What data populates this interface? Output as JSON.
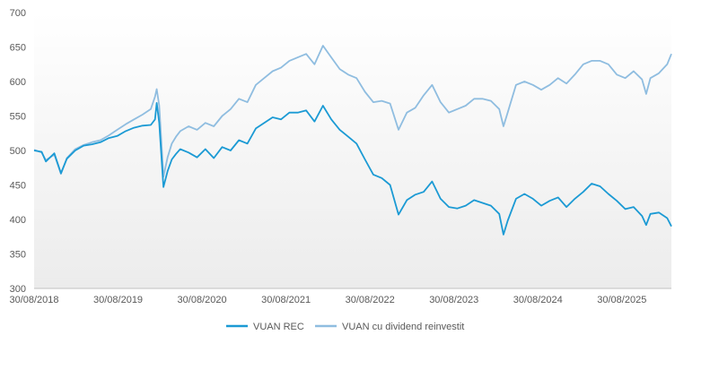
{
  "chart_data": {
    "type": "line",
    "title": "",
    "xlabel": "",
    "ylabel": "",
    "ylim": [
      300,
      700
    ],
    "y_ticks": [
      "700",
      "650",
      "600",
      "550",
      "500",
      "450",
      "400",
      "350",
      "300"
    ],
    "x_tick_labels": [
      "30/08/2018",
      "30/08/2019",
      "30/08/2020",
      "30/08/2021",
      "30/08/2022",
      "30/08/2023",
      "30/08/2024",
      "30/08/2025"
    ],
    "x_tick_years": [
      2018.66,
      2019.66,
      2020.66,
      2021.66,
      2022.66,
      2023.66,
      2024.66,
      2025.66
    ],
    "x_range": [
      2018.66,
      2026.25
    ],
    "grid": false,
    "legend_position": "bottom",
    "colors": {
      "vuan_rec": "#1b9ad4",
      "vuan_reinvest": "#8fbde0",
      "axis": "#bfbfbf",
      "tick_text": "#595959",
      "bg_top": "#ffffff",
      "bg_bottom": "#ececec"
    },
    "series": [
      {
        "key": "vuan_rec",
        "name": "VUAN REC",
        "points": [
          [
            2018.66,
            500
          ],
          [
            2018.75,
            498
          ],
          [
            2018.8,
            484
          ],
          [
            2018.9,
            496
          ],
          [
            2018.98,
            467
          ],
          [
            2019.05,
            488
          ],
          [
            2019.15,
            500
          ],
          [
            2019.25,
            507
          ],
          [
            2019.35,
            509
          ],
          [
            2019.45,
            512
          ],
          [
            2019.55,
            518
          ],
          [
            2019.65,
            521
          ],
          [
            2019.75,
            528
          ],
          [
            2019.85,
            533
          ],
          [
            2019.95,
            536
          ],
          [
            2020.05,
            537
          ],
          [
            2020.1,
            545
          ],
          [
            2020.12,
            569
          ],
          [
            2020.15,
            540
          ],
          [
            2020.2,
            447
          ],
          [
            2020.25,
            470
          ],
          [
            2020.3,
            487
          ],
          [
            2020.35,
            495
          ],
          [
            2020.4,
            502
          ],
          [
            2020.5,
            497
          ],
          [
            2020.6,
            490
          ],
          [
            2020.7,
            502
          ],
          [
            2020.8,
            489
          ],
          [
            2020.9,
            505
          ],
          [
            2021.0,
            500
          ],
          [
            2021.1,
            515
          ],
          [
            2021.2,
            510
          ],
          [
            2021.3,
            532
          ],
          [
            2021.4,
            540
          ],
          [
            2021.5,
            548
          ],
          [
            2021.6,
            545
          ],
          [
            2021.7,
            555
          ],
          [
            2021.8,
            555
          ],
          [
            2021.9,
            558
          ],
          [
            2022.0,
            542
          ],
          [
            2022.1,
            565
          ],
          [
            2022.2,
            545
          ],
          [
            2022.3,
            530
          ],
          [
            2022.4,
            520
          ],
          [
            2022.5,
            510
          ],
          [
            2022.6,
            487
          ],
          [
            2022.7,
            465
          ],
          [
            2022.8,
            460
          ],
          [
            2022.9,
            450
          ],
          [
            2023.0,
            407
          ],
          [
            2023.1,
            428
          ],
          [
            2023.2,
            436
          ],
          [
            2023.3,
            440
          ],
          [
            2023.4,
            455
          ],
          [
            2023.5,
            430
          ],
          [
            2023.6,
            418
          ],
          [
            2023.7,
            416
          ],
          [
            2023.8,
            420
          ],
          [
            2023.9,
            428
          ],
          [
            2024.0,
            424
          ],
          [
            2024.1,
            420
          ],
          [
            2024.2,
            408
          ],
          [
            2024.25,
            378
          ],
          [
            2024.3,
            398
          ],
          [
            2024.4,
            430
          ],
          [
            2024.5,
            437
          ],
          [
            2024.6,
            430
          ],
          [
            2024.7,
            420
          ],
          [
            2024.8,
            427
          ],
          [
            2024.9,
            432
          ],
          [
            2025.0,
            418
          ],
          [
            2025.1,
            430
          ],
          [
            2025.2,
            440
          ],
          [
            2025.3,
            452
          ],
          [
            2025.4,
            448
          ],
          [
            2025.5,
            437
          ],
          [
            2025.6,
            427
          ],
          [
            2025.7,
            415
          ],
          [
            2025.8,
            418
          ],
          [
            2025.9,
            405
          ],
          [
            2025.95,
            392
          ],
          [
            2026.0,
            408
          ],
          [
            2026.1,
            410
          ],
          [
            2026.2,
            402
          ],
          [
            2026.25,
            390
          ]
        ]
      },
      {
        "key": "vuan_reinvest",
        "name": "VUAN cu dividend reinvestit",
        "points": [
          [
            2018.66,
            501
          ],
          [
            2018.75,
            497
          ],
          [
            2018.8,
            486
          ],
          [
            2018.9,
            494
          ],
          [
            2018.98,
            466
          ],
          [
            2019.05,
            489
          ],
          [
            2019.15,
            502
          ],
          [
            2019.25,
            508
          ],
          [
            2019.35,
            512
          ],
          [
            2019.45,
            515
          ],
          [
            2019.55,
            522
          ],
          [
            2019.65,
            530
          ],
          [
            2019.75,
            538
          ],
          [
            2019.85,
            545
          ],
          [
            2019.95,
            552
          ],
          [
            2020.05,
            560
          ],
          [
            2020.1,
            578
          ],
          [
            2020.12,
            589
          ],
          [
            2020.15,
            565
          ],
          [
            2020.2,
            462
          ],
          [
            2020.25,
            490
          ],
          [
            2020.3,
            510
          ],
          [
            2020.35,
            520
          ],
          [
            2020.4,
            528
          ],
          [
            2020.5,
            535
          ],
          [
            2020.6,
            530
          ],
          [
            2020.7,
            540
          ],
          [
            2020.8,
            535
          ],
          [
            2020.9,
            550
          ],
          [
            2021.0,
            560
          ],
          [
            2021.1,
            575
          ],
          [
            2021.2,
            570
          ],
          [
            2021.3,
            595
          ],
          [
            2021.4,
            605
          ],
          [
            2021.5,
            615
          ],
          [
            2021.6,
            620
          ],
          [
            2021.7,
            630
          ],
          [
            2021.8,
            635
          ],
          [
            2021.9,
            640
          ],
          [
            2022.0,
            625
          ],
          [
            2022.1,
            652
          ],
          [
            2022.2,
            635
          ],
          [
            2022.3,
            618
          ],
          [
            2022.4,
            610
          ],
          [
            2022.5,
            605
          ],
          [
            2022.6,
            585
          ],
          [
            2022.7,
            570
          ],
          [
            2022.8,
            572
          ],
          [
            2022.9,
            568
          ],
          [
            2023.0,
            530
          ],
          [
            2023.1,
            555
          ],
          [
            2023.2,
            562
          ],
          [
            2023.3,
            580
          ],
          [
            2023.4,
            595
          ],
          [
            2023.5,
            570
          ],
          [
            2023.6,
            555
          ],
          [
            2023.7,
            560
          ],
          [
            2023.8,
            565
          ],
          [
            2023.9,
            575
          ],
          [
            2024.0,
            575
          ],
          [
            2024.1,
            572
          ],
          [
            2024.2,
            560
          ],
          [
            2024.25,
            535
          ],
          [
            2024.3,
            555
          ],
          [
            2024.4,
            595
          ],
          [
            2024.5,
            600
          ],
          [
            2024.6,
            595
          ],
          [
            2024.7,
            588
          ],
          [
            2024.8,
            595
          ],
          [
            2024.9,
            605
          ],
          [
            2025.0,
            597
          ],
          [
            2025.1,
            610
          ],
          [
            2025.2,
            625
          ],
          [
            2025.3,
            630
          ],
          [
            2025.4,
            630
          ],
          [
            2025.5,
            625
          ],
          [
            2025.6,
            610
          ],
          [
            2025.7,
            605
          ],
          [
            2025.8,
            615
          ],
          [
            2025.9,
            603
          ],
          [
            2025.95,
            582
          ],
          [
            2026.0,
            605
          ],
          [
            2026.1,
            612
          ],
          [
            2026.2,
            625
          ],
          [
            2026.25,
            640
          ]
        ]
      }
    ]
  }
}
